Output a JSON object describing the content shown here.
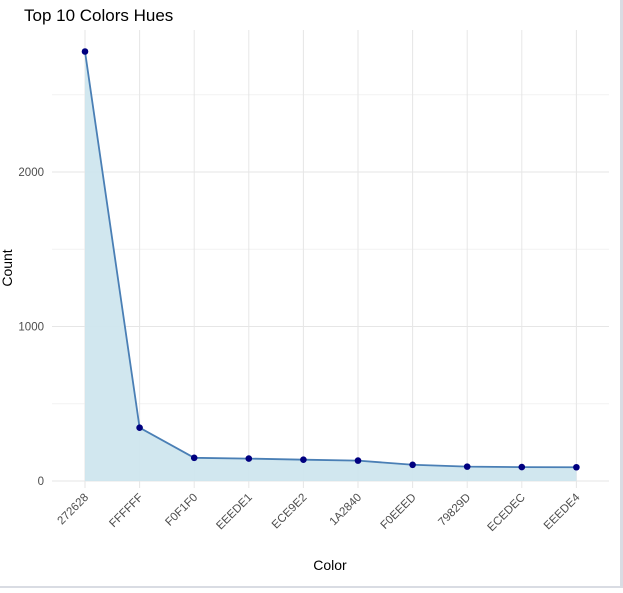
{
  "chart_data": {
    "type": "area",
    "title": "Top 10 Colors Hues",
    "xlabel": "Color",
    "ylabel": "Count",
    "categories": [
      "272628",
      "FFFFFF",
      "F0F1F0",
      "EEEDE1",
      "ECE9E2",
      "1A2840",
      "F0EEED",
      "79829D",
      "ECEDEC",
      "EEEDE4"
    ],
    "values": [
      2780,
      345,
      150,
      145,
      138,
      132,
      105,
      93,
      90,
      89
    ],
    "ylim": [
      0,
      2900
    ],
    "yticks": [
      0,
      1000,
      2000
    ],
    "ytick_labels": [
      "0",
      "1000",
      "2000"
    ],
    "grid": true,
    "colors": {
      "line": "#4a7fb5",
      "fill": "#cfe6ee",
      "point": "#000080",
      "grid_major": "#e6e6e6",
      "grid_minor": "#f2f2f2",
      "text": "#4d4d4d"
    }
  }
}
